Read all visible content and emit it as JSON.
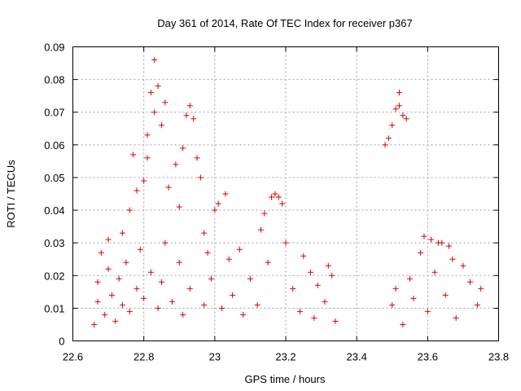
{
  "chart_data": {
    "type": "scatter",
    "title": "Day 361 of 2014, Rate Of TEC Index for receiver p367",
    "xlabel": "GPS time / hours",
    "ylabel": "ROTI / TECUs",
    "xlim": [
      22.6,
      23.8
    ],
    "ylim": [
      0,
      0.09
    ],
    "xticks": [
      "22.6",
      "22.8",
      "23",
      "23.2",
      "23.4",
      "23.6",
      "23.8"
    ],
    "yticks": [
      "0",
      "0.01",
      "0.02",
      "0.03",
      "0.04",
      "0.05",
      "0.06",
      "0.07",
      "0.08",
      "0.09"
    ],
    "grid": true,
    "marker": "plus",
    "color": "#dd0000",
    "series": [
      {
        "name": "ROTI",
        "points": [
          [
            22.66,
            0.005
          ],
          [
            22.67,
            0.012
          ],
          [
            22.67,
            0.018
          ],
          [
            22.68,
            0.027
          ],
          [
            22.69,
            0.008
          ],
          [
            22.7,
            0.022
          ],
          [
            22.7,
            0.031
          ],
          [
            22.71,
            0.014
          ],
          [
            22.72,
            0.006
          ],
          [
            22.73,
            0.019
          ],
          [
            22.74,
            0.033
          ],
          [
            22.74,
            0.011
          ],
          [
            22.75,
            0.024
          ],
          [
            22.76,
            0.04
          ],
          [
            22.76,
            0.009
          ],
          [
            22.77,
            0.057
          ],
          [
            22.78,
            0.016
          ],
          [
            22.78,
            0.046
          ],
          [
            22.79,
            0.028
          ],
          [
            22.8,
            0.049
          ],
          [
            22.8,
            0.013
          ],
          [
            22.81,
            0.063
          ],
          [
            22.81,
            0.056
          ],
          [
            22.82,
            0.021
          ],
          [
            22.82,
            0.076
          ],
          [
            22.83,
            0.07
          ],
          [
            22.83,
            0.086
          ],
          [
            22.84,
            0.01
          ],
          [
            22.84,
            0.078
          ],
          [
            22.85,
            0.066
          ],
          [
            22.85,
            0.018
          ],
          [
            22.86,
            0.073
          ],
          [
            22.86,
            0.03
          ],
          [
            22.87,
            0.047
          ],
          [
            22.88,
            0.012
          ],
          [
            22.89,
            0.054
          ],
          [
            22.9,
            0.041
          ],
          [
            22.9,
            0.024
          ],
          [
            22.91,
            0.059
          ],
          [
            22.91,
            0.008
          ],
          [
            22.92,
            0.069
          ],
          [
            22.93,
            0.072
          ],
          [
            22.93,
            0.016
          ],
          [
            22.94,
            0.068
          ],
          [
            22.95,
            0.056
          ],
          [
            22.96,
            0.05
          ],
          [
            22.97,
            0.033
          ],
          [
            22.97,
            0.011
          ],
          [
            22.98,
            0.027
          ],
          [
            22.99,
            0.019
          ],
          [
            23.0,
            0.04
          ],
          [
            23.01,
            0.042
          ],
          [
            23.02,
            0.01
          ],
          [
            23.03,
            0.045
          ],
          [
            23.04,
            0.025
          ],
          [
            23.05,
            0.014
          ],
          [
            23.07,
            0.028
          ],
          [
            23.08,
            0.008
          ],
          [
            23.1,
            0.019
          ],
          [
            23.12,
            0.011
          ],
          [
            23.13,
            0.034
          ],
          [
            23.14,
            0.039
          ],
          [
            23.15,
            0.024
          ],
          [
            23.16,
            0.044
          ],
          [
            23.17,
            0.045
          ],
          [
            23.18,
            0.044
          ],
          [
            23.19,
            0.042
          ],
          [
            23.2,
            0.03
          ],
          [
            23.22,
            0.016
          ],
          [
            23.24,
            0.009
          ],
          [
            23.25,
            0.026
          ],
          [
            23.27,
            0.021
          ],
          [
            23.28,
            0.007
          ],
          [
            23.29,
            0.017
          ],
          [
            23.31,
            0.012
          ],
          [
            23.32,
            0.023
          ],
          [
            23.33,
            0.02
          ],
          [
            23.34,
            0.006
          ],
          [
            23.48,
            0.06
          ],
          [
            23.49,
            0.062
          ],
          [
            23.5,
            0.066
          ],
          [
            23.51,
            0.071
          ],
          [
            23.52,
            0.072
          ],
          [
            23.52,
            0.076
          ],
          [
            23.53,
            0.069
          ],
          [
            23.54,
            0.068
          ],
          [
            23.5,
            0.011
          ],
          [
            23.51,
            0.016
          ],
          [
            23.53,
            0.005
          ],
          [
            23.55,
            0.019
          ],
          [
            23.56,
            0.013
          ],
          [
            23.58,
            0.027
          ],
          [
            23.59,
            0.032
          ],
          [
            23.6,
            0.009
          ],
          [
            23.61,
            0.031
          ],
          [
            23.62,
            0.021
          ],
          [
            23.63,
            0.03
          ],
          [
            23.64,
            0.03
          ],
          [
            23.65,
            0.014
          ],
          [
            23.66,
            0.029
          ],
          [
            23.67,
            0.025
          ],
          [
            23.68,
            0.007
          ],
          [
            23.7,
            0.023
          ],
          [
            23.72,
            0.018
          ],
          [
            23.74,
            0.011
          ],
          [
            23.75,
            0.016
          ]
        ]
      }
    ]
  }
}
